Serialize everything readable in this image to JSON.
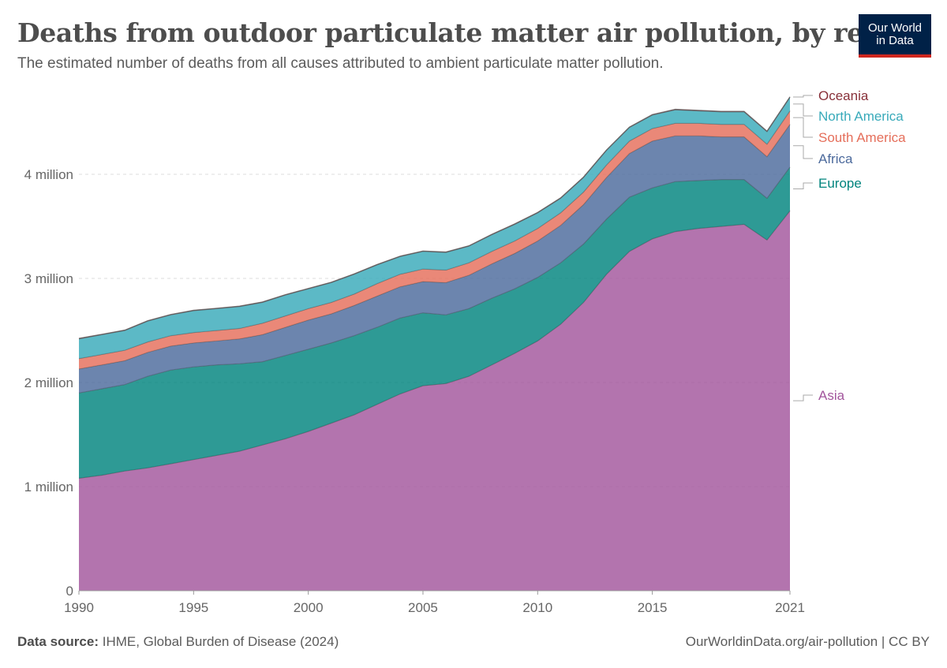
{
  "header": {
    "title": "Deaths from outdoor particulate matter air pollution, by region",
    "subtitle": "The estimated number of deaths from all causes attributed to ambient particulate matter pollution."
  },
  "logo": {
    "line1": "Our World",
    "line2": "in Data"
  },
  "footer": {
    "source_label": "Data source:",
    "source_text": "IHME, Global Burden of Disease (2024)",
    "link": "OurWorldinData.org/air-pollution | CC BY"
  },
  "chart_data": {
    "type": "area",
    "stacked": true,
    "x_ticks": [
      1990,
      1995,
      2000,
      2005,
      2010,
      2015,
      2021
    ],
    "y_ticks": [
      {
        "value": 0,
        "label": "0"
      },
      {
        "value": 1000000,
        "label": "1 million"
      },
      {
        "value": 2000000,
        "label": "2 million"
      },
      {
        "value": 3000000,
        "label": "3 million"
      },
      {
        "value": 4000000,
        "label": "4 million"
      }
    ],
    "ylim": [
      0,
      4750000
    ],
    "xlim": [
      1990,
      2021
    ],
    "x": [
      1990,
      1991,
      1992,
      1993,
      1994,
      1995,
      1996,
      1997,
      1998,
      1999,
      2000,
      2001,
      2002,
      2003,
      2004,
      2005,
      2006,
      2007,
      2008,
      2009,
      2010,
      2011,
      2012,
      2013,
      2014,
      2015,
      2016,
      2017,
      2018,
      2019,
      2020,
      2021
    ],
    "series": [
      {
        "name": "Asia",
        "color": "#a2559c",
        "values": [
          1080000,
          1110000,
          1150000,
          1180000,
          1220000,
          1260000,
          1300000,
          1340000,
          1400000,
          1460000,
          1530000,
          1610000,
          1690000,
          1790000,
          1890000,
          1970000,
          1990000,
          2060000,
          2170000,
          2280000,
          2400000,
          2560000,
          2770000,
          3040000,
          3260000,
          3380000,
          3450000,
          3480000,
          3500000,
          3520000,
          3370000,
          3650000
        ]
      },
      {
        "name": "Europe",
        "color": "#00847e",
        "values": [
          820000,
          830000,
          830000,
          880000,
          900000,
          890000,
          870000,
          840000,
          800000,
          800000,
          790000,
          770000,
          760000,
          740000,
          730000,
          700000,
          660000,
          650000,
          640000,
          620000,
          610000,
          590000,
          560000,
          530000,
          520000,
          490000,
          480000,
          460000,
          450000,
          430000,
          400000,
          420000
        ]
      },
      {
        "name": "Africa",
        "color": "#4c6a9c",
        "values": [
          230000,
          230000,
          230000,
          230000,
          230000,
          230000,
          230000,
          240000,
          260000,
          270000,
          280000,
          280000,
          290000,
          300000,
          300000,
          300000,
          310000,
          320000,
          330000,
          340000,
          350000,
          360000,
          380000,
          400000,
          420000,
          450000,
          440000,
          430000,
          410000,
          410000,
          400000,
          410000
        ]
      },
      {
        "name": "South America",
        "color": "#e56e5a",
        "values": [
          100000,
          100000,
          100000,
          100000,
          100000,
          100000,
          100000,
          100000,
          110000,
          110000,
          110000,
          110000,
          110000,
          120000,
          120000,
          120000,
          120000,
          120000,
          120000,
          120000,
          120000,
          120000,
          120000,
          120000,
          120000,
          120000,
          120000,
          120000,
          120000,
          120000,
          120000,
          130000
        ]
      },
      {
        "name": "North America",
        "color": "#38aaba",
        "values": [
          190000,
          190000,
          190000,
          200000,
          200000,
          210000,
          210000,
          210000,
          200000,
          200000,
          190000,
          190000,
          190000,
          180000,
          170000,
          170000,
          170000,
          160000,
          160000,
          160000,
          150000,
          140000,
          140000,
          140000,
          130000,
          130000,
          130000,
          120000,
          120000,
          120000,
          120000,
          130000
        ]
      },
      {
        "name": "Oceania",
        "color": "#883039",
        "values": [
          4000,
          4000,
          4000,
          4000,
          4000,
          4000,
          4000,
          4000,
          4000,
          4000,
          4000,
          4000,
          4000,
          4000,
          4000,
          4000,
          4000,
          4000,
          4000,
          4000,
          4000,
          4000,
          4000,
          4000,
          4000,
          4000,
          5000,
          5000,
          5000,
          5000,
          5000,
          5000
        ]
      }
    ]
  }
}
